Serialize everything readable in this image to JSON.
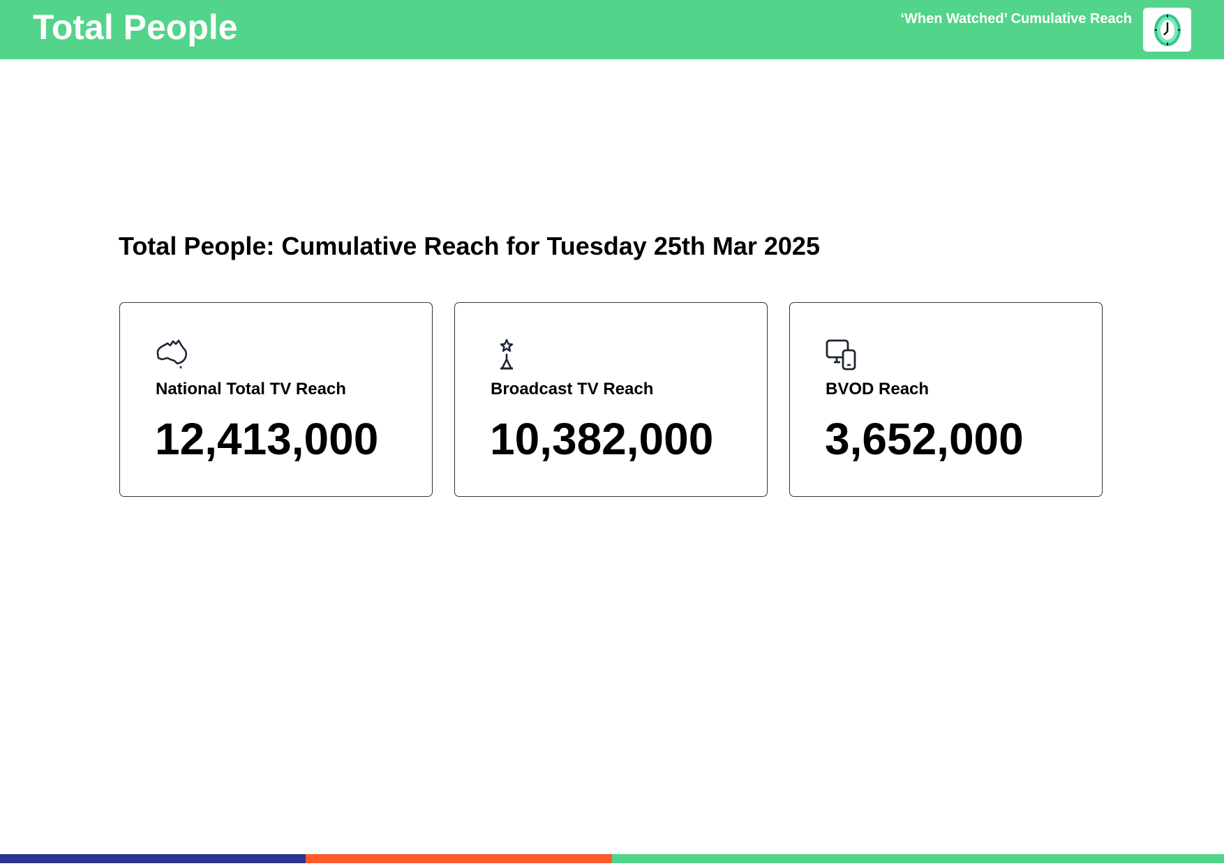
{
  "header": {
    "title": "Total People",
    "subtitle": "‘When Watched’ Cumulative Reach",
    "logo_icon": "clock-icon",
    "background_color": "#52d48a"
  },
  "main": {
    "heading": "Total People: Cumulative Reach for Tuesday 25th Mar 2025",
    "cards": [
      {
        "icon": "australia-map-icon",
        "label": "National Total TV Reach",
        "value": "12,413,000"
      },
      {
        "icon": "broadcast-tower-icon",
        "label": "Broadcast TV Reach",
        "value": "10,382,000"
      },
      {
        "icon": "devices-icon",
        "label": "BVOD Reach",
        "value": "3,652,000"
      }
    ]
  },
  "footer": {
    "stripe_colors": [
      "#2b3592",
      "#ff5a2a",
      "#52d48a"
    ]
  }
}
